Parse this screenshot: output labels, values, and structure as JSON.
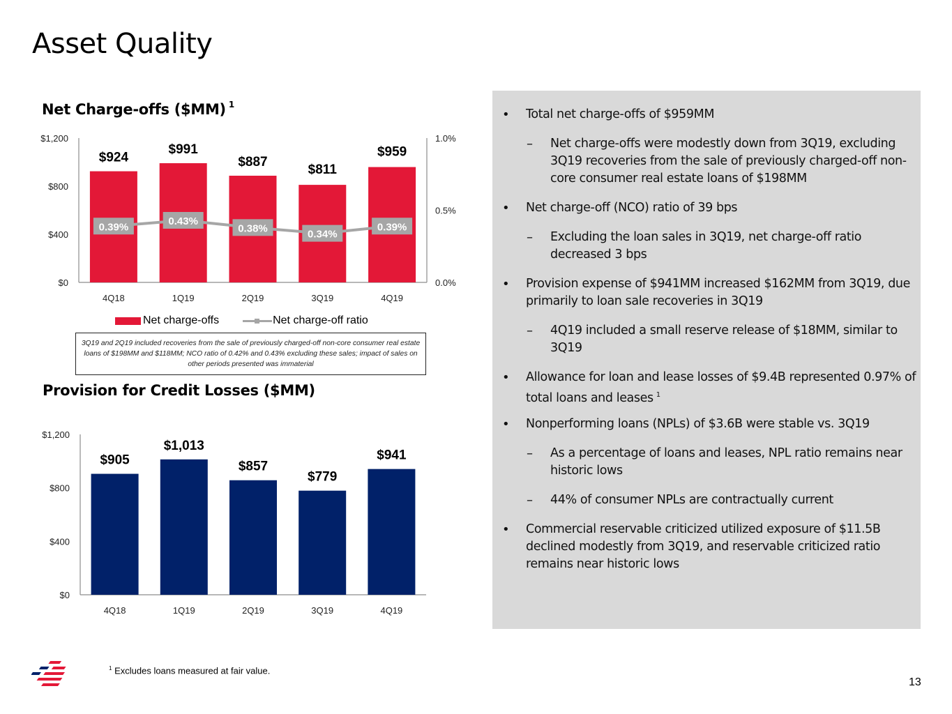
{
  "page": {
    "title": "Asset Quality",
    "page_number": "13",
    "footnote_marker": "1",
    "footnote": "Excludes loans measured at fair value."
  },
  "colors": {
    "nco_bar": "#e31837",
    "ratio_line": "#a6a6a6",
    "provision_bar": "#012169",
    "panel_bg": "#d9d9d9"
  },
  "chart_data": [
    {
      "type": "bar",
      "title": "Net Charge-offs ($MM)",
      "title_superscript": "1",
      "categories": [
        "4Q18",
        "1Q19",
        "2Q19",
        "3Q19",
        "4Q19"
      ],
      "series": [
        {
          "name": "Net charge-offs",
          "type": "bar",
          "axis": "left",
          "values": [
            924,
            991,
            887,
            811,
            959
          ],
          "labels": [
            "$924",
            "$991",
            "$887",
            "$811",
            "$959"
          ]
        },
        {
          "name": "Net charge-off ratio",
          "type": "line",
          "axis": "right",
          "values": [
            0.39,
            0.43,
            0.38,
            0.34,
            0.39
          ],
          "labels": [
            "0.39%",
            "0.43%",
            "0.38%",
            "0.34%",
            "0.39%"
          ]
        }
      ],
      "ylim": [
        0,
        1200
      ],
      "yticks": [
        0,
        400,
        800,
        1200
      ],
      "ytick_labels": [
        "$0",
        "$400",
        "$800",
        "$1,200"
      ],
      "y2lim": [
        0,
        1.0
      ],
      "y2ticks": [
        0,
        0.5,
        1.0
      ],
      "y2tick_labels": [
        "0.0%",
        "0.5%",
        "1.0%"
      ],
      "legend": [
        "Net charge-offs",
        "Net charge-off ratio"
      ],
      "legend_position": "bottom",
      "grid": false,
      "annotation": "3Q19 and 2Q19 included recoveries from the sale of previously charged-off non-core consumer real estate loans of $198MM and $118MM; NCO ratio of 0.42% and 0.43% excluding these sales; impact of sales on other periods presented was immaterial"
    },
    {
      "type": "bar",
      "title": "Provision for Credit Losses ($MM)",
      "categories": [
        "4Q18",
        "1Q19",
        "2Q19",
        "3Q19",
        "4Q19"
      ],
      "series": [
        {
          "name": "Provision for credit losses",
          "values": [
            905,
            1013,
            857,
            779,
            941
          ],
          "labels": [
            "$905",
            "$1,013",
            "$857",
            "$779",
            "$941"
          ]
        }
      ],
      "ylim": [
        0,
        1200
      ],
      "yticks": [
        0,
        400,
        800,
        1200
      ],
      "ytick_labels": [
        "$0",
        "$400",
        "$800",
        "$1,200"
      ],
      "grid": false
    }
  ],
  "bullets": [
    {
      "level": 1,
      "text": "Total net charge-offs of $959MM"
    },
    {
      "level": 2,
      "text": "Net charge-offs were modestly down from 3Q19, excluding 3Q19 recoveries from the sale of previously charged-off non-core consumer real estate loans of $198MM"
    },
    {
      "level": 1,
      "text": "Net charge-off (NCO) ratio of 39 bps"
    },
    {
      "level": 2,
      "text": "Excluding the loan sales in 3Q19, net charge-off ratio decreased 3 bps"
    },
    {
      "level": 1,
      "text": "Provision expense of $941MM increased $162MM from 3Q19, due primarily to loan sale recoveries in 3Q19"
    },
    {
      "level": 2,
      "text": "4Q19 included a small reserve release of $18MM, similar to 3Q19"
    },
    {
      "level": 1,
      "text": "Allowance for loan and lease losses of $9.4B represented 0.97% of total loans and leases",
      "superscript": "1"
    },
    {
      "level": 1,
      "text": "Nonperforming loans (NPLs) of $3.6B were stable vs. 3Q19"
    },
    {
      "level": 2,
      "text": "As a percentage of loans and leases, NPL ratio remains near historic lows"
    },
    {
      "level": 2,
      "text": "44% of consumer NPLs are contractually current"
    },
    {
      "level": 1,
      "text": "Commercial reservable criticized utilized exposure of $11.5B declined modestly from 3Q19, and reservable criticized ratio remains near historic lows"
    }
  ],
  "bullet_marks": {
    "level1": "•",
    "level2": "–"
  }
}
